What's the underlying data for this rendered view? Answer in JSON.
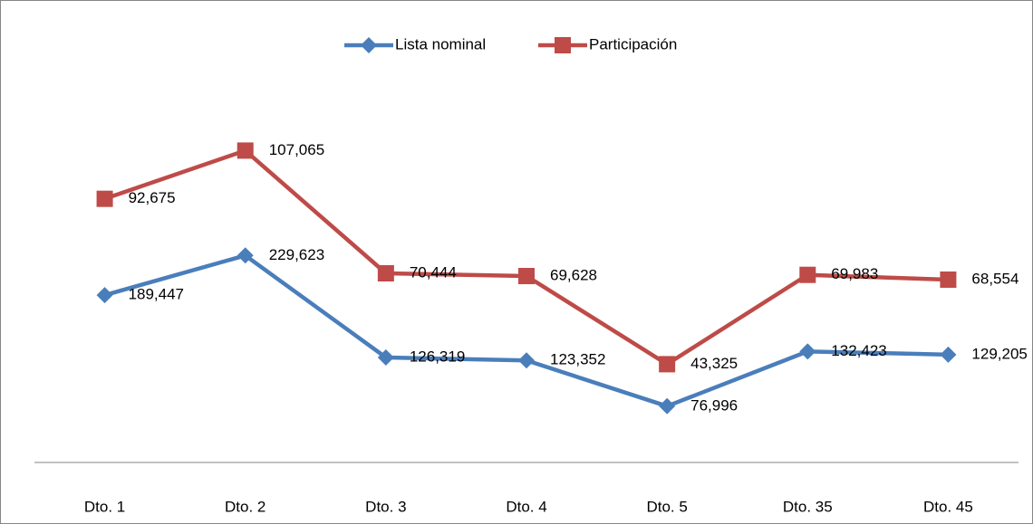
{
  "chart_data": {
    "type": "line",
    "categories": [
      "Dto. 1",
      "Dto. 2",
      "Dto. 3",
      "Dto. 4",
      "Dto. 5",
      "Dto. 35",
      "Dto. 45"
    ],
    "series": [
      {
        "name": "Lista nominal",
        "color": "#4a7ebb",
        "marker": "diamond",
        "values": [
          189447,
          229623,
          126319,
          123352,
          76996,
          132423,
          129205
        ],
        "value_labels": [
          "189,447",
          "229,623",
          "126,319",
          "123,352",
          "76,996",
          "132,423",
          "129,205"
        ]
      },
      {
        "name": "Participación",
        "color": "#be4b48",
        "marker": "square",
        "axis": "y2",
        "values": [
          92675,
          107065,
          70444,
          69628,
          43325,
          69983,
          68554
        ],
        "value_labels": [
          "92,675",
          "107,065",
          "70,444",
          "69,628",
          "43,325",
          "69,983",
          "68,554"
        ]
      }
    ],
    "ylim": [
      20000,
      470000
    ],
    "y2lim": [
      14000,
      146600
    ],
    "legend": "top"
  }
}
